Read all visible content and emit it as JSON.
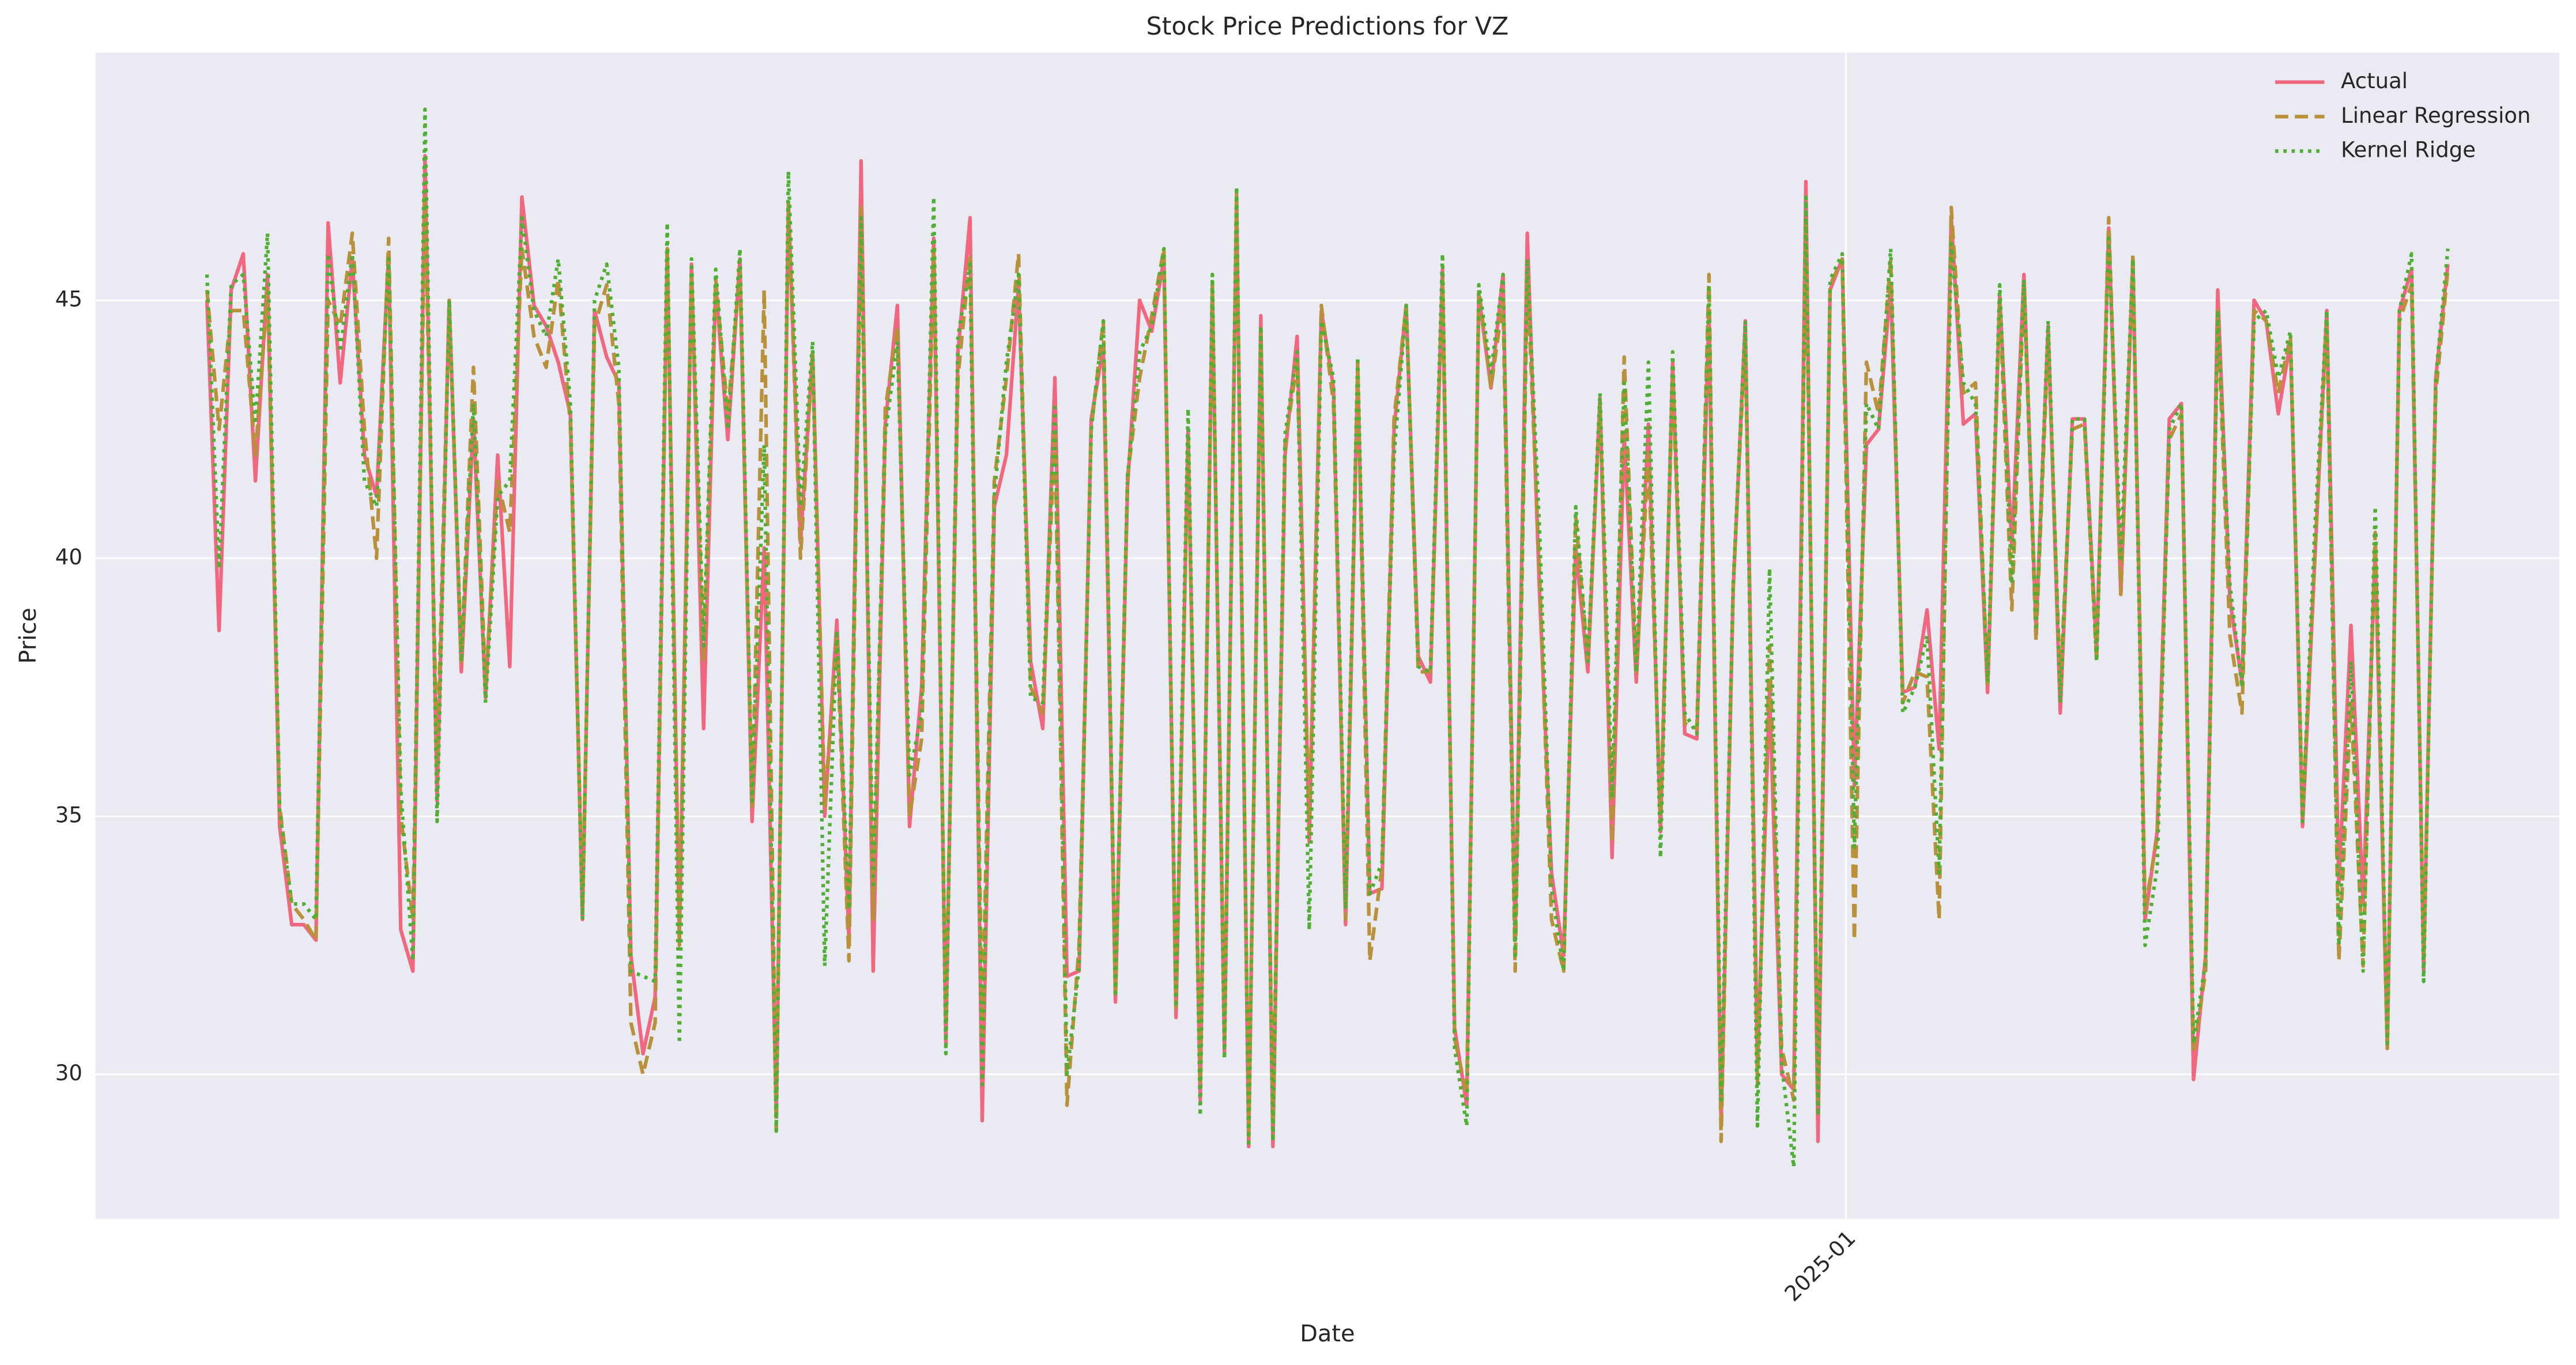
{
  "chart_data": {
    "type": "line",
    "title": "Stock Price Predictions for VZ",
    "x_label": "Date",
    "y_label": "Price",
    "xlim": [
      -9.2,
      194.2
    ],
    "xticks": [
      {
        "value": 135.3,
        "label": "2025-01"
      }
    ],
    "ylim": [
      27.2,
      49.8
    ],
    "yticks": [
      30,
      35,
      40,
      45
    ],
    "grid": true,
    "legend": "upper right",
    "background": "#eaeaf2",
    "series": [
      {
        "name": "Actual",
        "color": "#f0677f",
        "linestyle": "solid",
        "values": [
          45.0,
          38.6,
          45.2,
          45.9,
          41.5,
          45.5,
          34.8,
          32.9,
          32.9,
          32.6,
          46.5,
          43.4,
          45.8,
          42.0,
          41.2,
          45.9,
          32.8,
          32.0,
          47.8,
          35.3,
          45.0,
          37.8,
          42.7,
          37.3,
          42.0,
          37.9,
          47.0,
          44.9,
          44.5,
          43.8,
          42.8,
          33.0,
          44.8,
          43.9,
          43.4,
          32.3,
          30.4,
          31.5,
          46.0,
          32.6,
          45.7,
          36.7,
          45.3,
          42.3,
          45.8,
          34.9,
          40.2,
          29.2,
          46.9,
          40.3,
          44.0,
          35.0,
          38.8,
          32.6,
          47.7,
          32.0,
          42.6,
          44.9,
          34.8,
          37.5,
          46.2,
          30.6,
          44.0,
          46.6,
          29.1,
          41.0,
          42.0,
          45.3,
          38.0,
          36.7,
          43.5,
          31.9,
          32.0,
          42.7,
          44.1,
          31.4,
          41.4,
          45.0,
          44.4,
          45.8,
          31.1,
          42.5,
          29.5,
          45.3,
          30.4,
          47.0,
          28.6,
          44.7,
          28.6,
          42.0,
          44.3,
          34.5,
          44.8,
          43.3,
          32.9,
          43.6,
          33.5,
          33.6,
          42.5,
          44.9,
          38.1,
          37.6,
          45.6,
          30.9,
          29.4,
          45.1,
          43.3,
          45.5,
          32.6,
          46.3,
          39.4,
          33.9,
          32.3,
          40.2,
          37.8,
          43.1,
          34.2,
          42.4,
          37.6,
          42.6,
          34.7,
          43.8,
          36.6,
          36.5,
          44.8,
          29.0,
          39.4,
          44.6,
          30.2,
          37.4,
          30.0,
          29.7,
          47.3,
          28.7,
          45.2,
          45.8,
          35.6,
          42.2,
          42.5,
          45.3,
          37.4,
          37.5,
          39.0,
          36.3,
          46.6,
          42.6,
          42.8,
          37.4,
          45.1,
          40.2,
          45.5,
          38.6,
          44.5,
          37.0,
          42.7,
          42.7,
          38.2,
          46.4,
          39.3,
          45.8,
          33.0,
          34.7,
          42.7,
          43.0,
          29.9,
          32.3,
          45.2,
          39.2,
          37.6,
          45.0,
          44.6,
          42.8,
          44.2,
          34.8,
          39.9,
          44.8,
          33.7,
          38.7,
          33.3,
          40.2,
          30.5,
          44.8,
          45.6,
          32.0,
          43.5,
          45.7
        ]
      },
      {
        "name": "Linear Regression",
        "color": "#b8913a",
        "linestyle": "dashed",
        "values": [
          45.2,
          42.5,
          44.8,
          44.8,
          42.0,
          45.2,
          35.2,
          33.3,
          33.0,
          32.6,
          45.0,
          44.5,
          46.3,
          42.5,
          40.0,
          46.2,
          35.0,
          33.0,
          47.0,
          36.0,
          45.0,
          38.0,
          43.7,
          37.5,
          41.5,
          40.5,
          46.0,
          44.3,
          43.7,
          45.4,
          42.6,
          33.2,
          44.5,
          45.3,
          43.0,
          31.0,
          30.0,
          31.0,
          46.0,
          32.5,
          45.5,
          38.0,
          45.4,
          42.8,
          45.6,
          35.2,
          45.2,
          28.9,
          46.9,
          40.0,
          44.0,
          35.2,
          38.5,
          32.2,
          46.8,
          33.0,
          42.9,
          44.5,
          35.0,
          36.5,
          46.0,
          31.0,
          43.5,
          45.9,
          30.8,
          41.5,
          43.5,
          45.9,
          37.5,
          37.0,
          42.5,
          29.4,
          32.5,
          42.5,
          44.6,
          31.6,
          41.6,
          43.5,
          44.7,
          46.0,
          31.3,
          42.3,
          29.8,
          45.3,
          30.7,
          47.1,
          28.8,
          44.4,
          29.0,
          42.2,
          43.8,
          34.7,
          44.9,
          43.0,
          33.0,
          43.8,
          32.2,
          34.0,
          42.7,
          44.9,
          37.8,
          37.8,
          45.4,
          30.7,
          29.6,
          45.2,
          43.3,
          45.0,
          32.0,
          45.5,
          39.8,
          33.0,
          32.0,
          40.8,
          38.0,
          43.0,
          34.5,
          43.9,
          37.8,
          42.0,
          35.0,
          43.5,
          36.8,
          36.7,
          45.5,
          28.7,
          39.5,
          44.3,
          29.8,
          38.3,
          30.5,
          29.5,
          46.5,
          29.5,
          45.3,
          45.8,
          32.6,
          43.8,
          42.8,
          45.8,
          37.2,
          37.8,
          37.7,
          33.0,
          46.8,
          43.2,
          43.4,
          37.5,
          45.0,
          39.0,
          45.3,
          38.4,
          44.3,
          37.5,
          42.5,
          42.6,
          38.0,
          46.6,
          39.3,
          45.9,
          33.2,
          34.6,
          42.3,
          42.8,
          30.4,
          32.0,
          44.8,
          38.5,
          37.0,
          44.8,
          44.6,
          43.2,
          44.3,
          35.0,
          40.0,
          44.6,
          32.2,
          37.2,
          32.1,
          40.5,
          30.5,
          44.6,
          45.3,
          32.2,
          43.2,
          45.6
        ]
      },
      {
        "name": "Kernel Ridge",
        "color": "#4fae33",
        "linestyle": "dotted",
        "values": [
          45.5,
          39.8,
          45.3,
          45.5,
          42.6,
          46.3,
          35.1,
          33.3,
          33.3,
          33.0,
          45.9,
          44.0,
          45.9,
          41.5,
          41.0,
          45.8,
          35.5,
          32.2,
          48.7,
          34.9,
          45.0,
          38.0,
          43.0,
          37.2,
          41.2,
          41.5,
          46.6,
          44.8,
          44.3,
          45.8,
          43.0,
          33.0,
          45.0,
          45.7,
          43.7,
          32.0,
          31.9,
          31.8,
          46.5,
          30.6,
          45.8,
          38.3,
          45.6,
          42.5,
          46.0,
          35.3,
          42.2,
          28.9,
          47.5,
          41.0,
          44.2,
          32.1,
          38.6,
          33.2,
          46.6,
          33.6,
          42.4,
          44.2,
          35.8,
          37.0,
          47.0,
          30.4,
          44.3,
          45.7,
          29.8,
          41.2,
          43.8,
          45.5,
          37.3,
          37.2,
          43.0,
          30.0,
          32.1,
          42.5,
          44.6,
          31.5,
          41.6,
          44.0,
          44.5,
          46.0,
          31.3,
          42.9,
          29.2,
          45.5,
          30.3,
          47.2,
          28.6,
          44.5,
          28.7,
          42.4,
          44.0,
          32.8,
          44.6,
          43.5,
          33.2,
          43.9,
          33.5,
          34.1,
          42.0,
          44.9,
          37.9,
          37.8,
          45.9,
          30.5,
          29.0,
          45.3,
          43.6,
          45.5,
          32.3,
          45.8,
          40.6,
          33.6,
          32.0,
          41.0,
          38.0,
          43.2,
          35.4,
          43.4,
          37.8,
          43.8,
          34.2,
          44.0,
          37.0,
          36.6,
          45.3,
          29.5,
          39.5,
          44.6,
          29.0,
          39.8,
          30.2,
          28.2,
          47.0,
          29.2,
          45.4,
          45.9,
          34.4,
          43.0,
          42.5,
          46.0,
          37.0,
          37.5,
          38.5,
          33.9,
          46.1,
          43.4,
          43.0,
          37.6,
          45.3,
          39.5,
          45.4,
          38.6,
          44.6,
          37.2,
          42.7,
          42.7,
          38.0,
          46.2,
          40.0,
          45.8,
          32.5,
          34.0,
          42.5,
          43.0,
          30.6,
          32.2,
          44.8,
          39.5,
          37.5,
          44.6,
          44.8,
          43.5,
          44.4,
          34.9,
          40.5,
          44.8,
          32.5,
          38.0,
          32.0,
          41.0,
          30.6,
          44.8,
          45.9,
          31.8,
          43.5,
          46.0
        ]
      }
    ]
  }
}
